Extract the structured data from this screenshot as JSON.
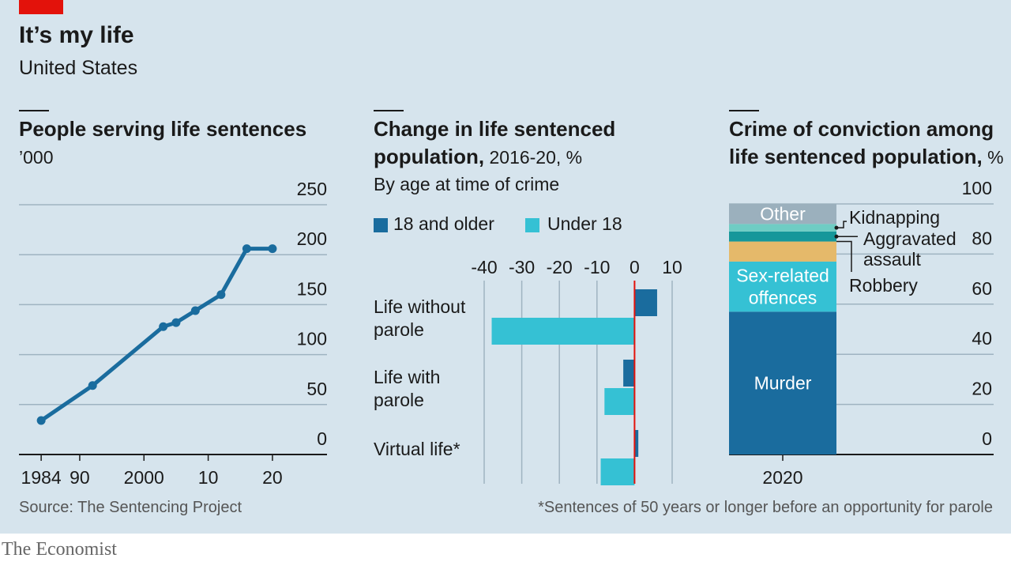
{
  "header": {
    "title": "It’s my life",
    "subtitle": "United States"
  },
  "colors": {
    "background": "#d6e4ed",
    "dark_blue": "#1a6c9e",
    "light_blue": "#35c1d4",
    "teal": "#16979a",
    "mint": "#6fcdc4",
    "gold": "#e5b96a",
    "grey_blue": "#9bb0bd",
    "brand_red": "#e3120b",
    "zero_line": "#e3120b"
  },
  "chart1": {
    "title": "People serving life sentences",
    "unit": "’000"
  },
  "chart2": {
    "title_bold": "Change in life sentenced population,",
    "title_rest": " 2016-20, %",
    "subtitle": "By age at time of crime",
    "legend": [
      "18 and older",
      "Under 18"
    ]
  },
  "chart3": {
    "title_line1": "Crime of conviction among",
    "title_line2_bold": "life sentenced population,",
    "title_line2_rest": " %"
  },
  "footer": {
    "source": "Source: The Sentencing Project",
    "note": "*Sentences of 50 years or longer before an opportunity for parole",
    "brand": "The Economist"
  },
  "chart_data": [
    {
      "type": "line",
      "title": "People serving life sentences",
      "ylabel": "’000",
      "x": [
        1984,
        1992,
        2003,
        2005,
        2008,
        2012,
        2016,
        2020
      ],
      "values": [
        34,
        69,
        128,
        132,
        144,
        160,
        206,
        206
      ],
      "ylim": [
        0,
        250
      ],
      "yticks": [
        0,
        50,
        100,
        150,
        200,
        250
      ],
      "xlim": [
        1983,
        2028
      ],
      "xticks": [
        1984,
        1990,
        2000,
        2010,
        2020
      ],
      "xtick_labels": [
        "1984",
        "90",
        "2000",
        "10",
        "20"
      ],
      "grid": true
    },
    {
      "type": "bar",
      "orientation": "horizontal",
      "title": "Change in life sentenced population, 2016-20, %",
      "subtitle": "By age at time of crime",
      "categories": [
        "Life without parole",
        "Life with parole",
        "Virtual life*"
      ],
      "category_lines": [
        [
          "Life without",
          "parole"
        ],
        [
          "Life with",
          "parole"
        ],
        [
          "Virtual life*"
        ]
      ],
      "series": [
        {
          "name": "18 and older",
          "values": [
            6,
            -3,
            1
          ]
        },
        {
          "name": "Under 18",
          "values": [
            -38,
            -8,
            -9
          ]
        }
      ],
      "xlim": [
        -40,
        10
      ],
      "xticks": [
        -40,
        -30,
        -20,
        -10,
        0,
        10
      ],
      "legend": "top"
    },
    {
      "type": "bar",
      "stacked": true,
      "title": "Crime of conviction among life sentenced population, %",
      "categories": [
        "2020"
      ],
      "segments": [
        {
          "name": "Murder",
          "value": 57,
          "color": "dark_blue",
          "label_lines": [
            "Murder"
          ]
        },
        {
          "name": "Sex-related offences",
          "value": 20,
          "color": "light_blue",
          "label_lines": [
            "Sex-related",
            "offences"
          ]
        },
        {
          "name": "Robbery",
          "value": 8,
          "color": "gold",
          "label_lines": [
            "Robbery"
          ]
        },
        {
          "name": "Aggravated assault",
          "value": 4,
          "color": "teal",
          "label_lines": [
            "Aggravated",
            "assault"
          ]
        },
        {
          "name": "Kidnapping",
          "value": 3,
          "color": "mint",
          "label_lines": [
            "Kidnapping"
          ]
        },
        {
          "name": "Other",
          "value": 8,
          "color": "grey_blue",
          "label_lines": [
            "Other"
          ]
        }
      ],
      "ylim": [
        0,
        100
      ],
      "yticks": [
        0,
        20,
        40,
        60,
        80,
        100
      ],
      "grid": true
    }
  ]
}
